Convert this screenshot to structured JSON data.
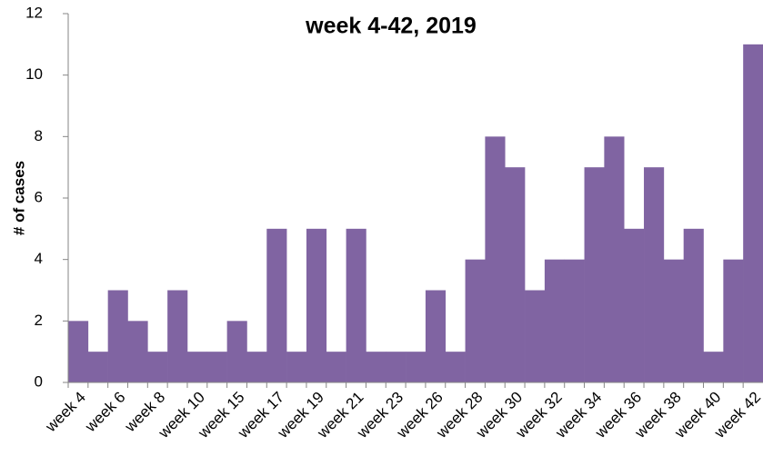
{
  "chart_data": {
    "type": "bar",
    "title": "week 4-42, 2019",
    "y_label": "# of cases",
    "categories": [
      "week 4",
      null,
      "week 6",
      null,
      "week 8",
      null,
      "week 10",
      null,
      "week 15",
      null,
      "week 17",
      null,
      "week 19",
      null,
      "week 21",
      null,
      "week 23",
      null,
      "week 26",
      null,
      "week 28",
      null,
      "week 30",
      null,
      "week 32",
      null,
      "week 34",
      null,
      "week 36",
      null,
      "week 38",
      null,
      "week 40",
      null,
      "week 42"
    ],
    "values": [
      2,
      1,
      3,
      2,
      1,
      3,
      1,
      1,
      2,
      1,
      5,
      1,
      5,
      1,
      5,
      1,
      1,
      1,
      3,
      1,
      4,
      8,
      7,
      3,
      4,
      4,
      7,
      8,
      5,
      7,
      4,
      5,
      1,
      4,
      11
    ],
    "color": "#8064a2",
    "ylim": [
      0,
      12
    ],
    "yticks": [
      0,
      2,
      4,
      6,
      8,
      10,
      12
    ],
    "grid": false
  }
}
